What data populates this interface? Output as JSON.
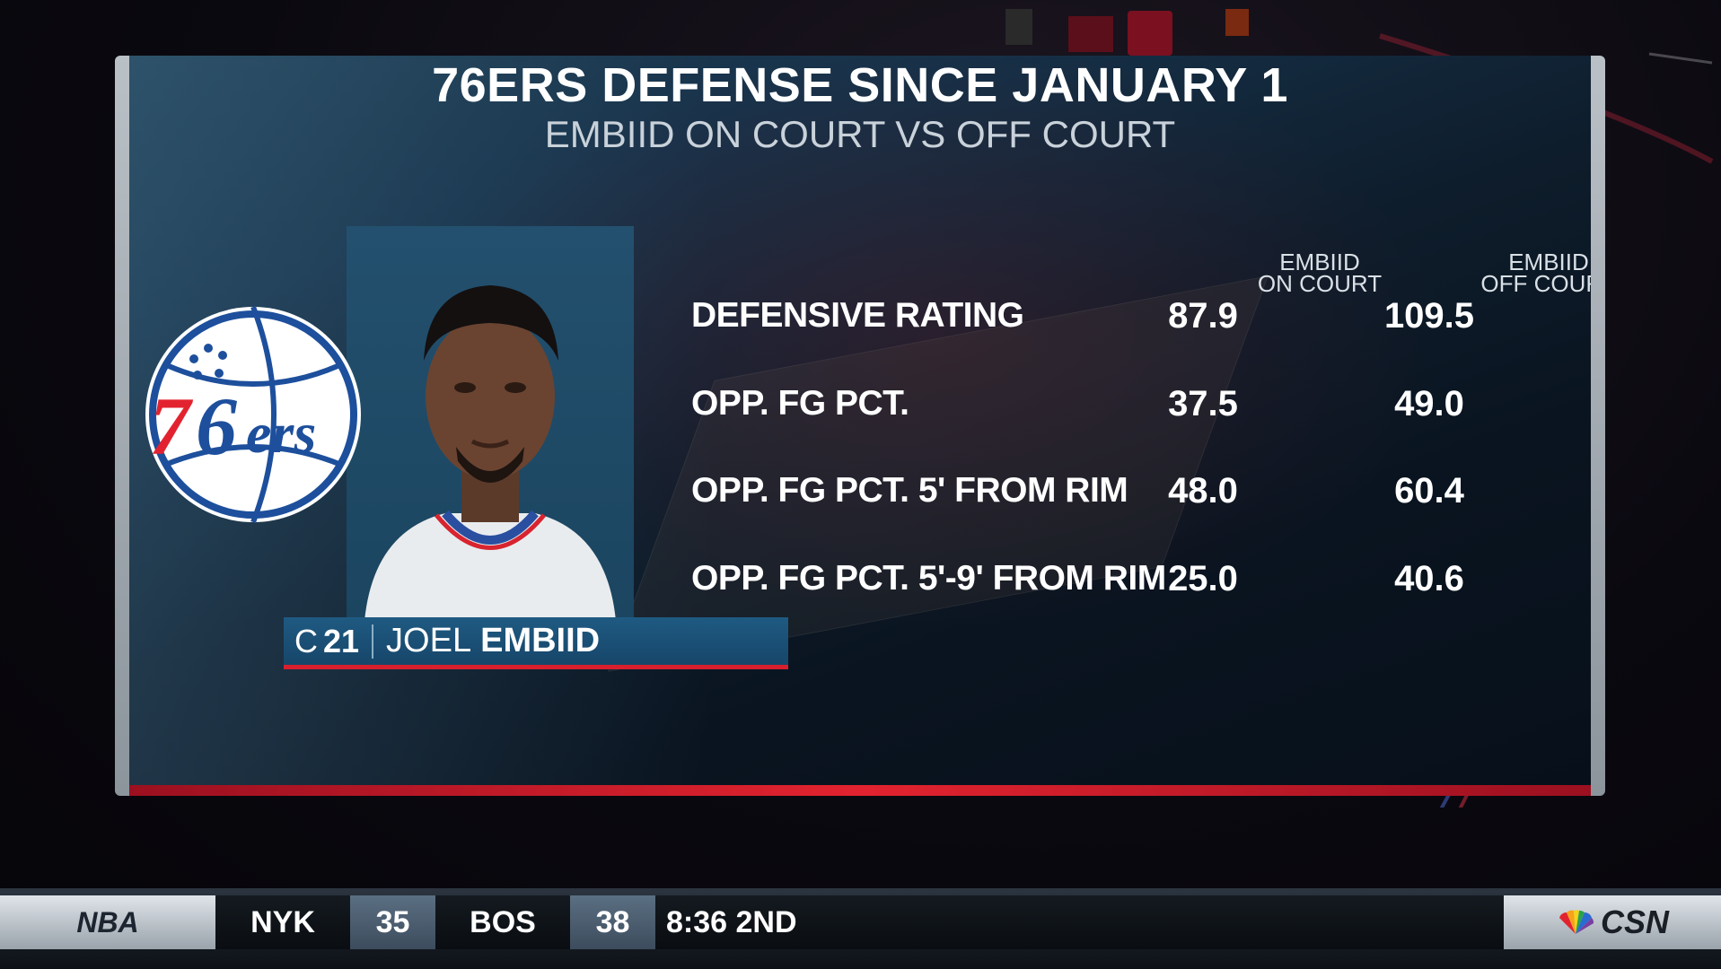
{
  "graphic": {
    "title": "76ERS DEFENSE SINCE JANUARY 1",
    "subtitle": "EMBIID ON COURT VS OFF COURT",
    "team_logo": "76ers",
    "player": {
      "position": "C",
      "number": "21",
      "first_name": "JOEL",
      "last_name": "EMBIID"
    },
    "columns": [
      {
        "line1": "EMBIID",
        "line2": "ON COURT"
      },
      {
        "line1": "EMBIID",
        "line2": "OFF COURT"
      }
    ],
    "rows": [
      {
        "label": "DEFENSIVE RATING",
        "on": "87.9",
        "off": "109.5"
      },
      {
        "label": "OPP. FG PCT.",
        "on": "37.5",
        "off": "49.0"
      },
      {
        "label": "OPP. FG PCT. 5' FROM RIM",
        "on": "48.0",
        "off": "60.4"
      },
      {
        "label": "OPP. FG PCT. 5'-9' FROM RIM",
        "on": "25.0",
        "off": "40.6"
      }
    ]
  },
  "ticker": {
    "league": "NBA",
    "away_team": "NYK",
    "away_score": "35",
    "home_team": "BOS",
    "home_score": "38",
    "clock": "8:36 2ND",
    "network": "CSN",
    "network_icon": "peacock-icon"
  },
  "colors": {
    "sixers_blue": "#1d4f9c",
    "sixers_red": "#e2232f",
    "accent_red": "#d81f2d"
  }
}
